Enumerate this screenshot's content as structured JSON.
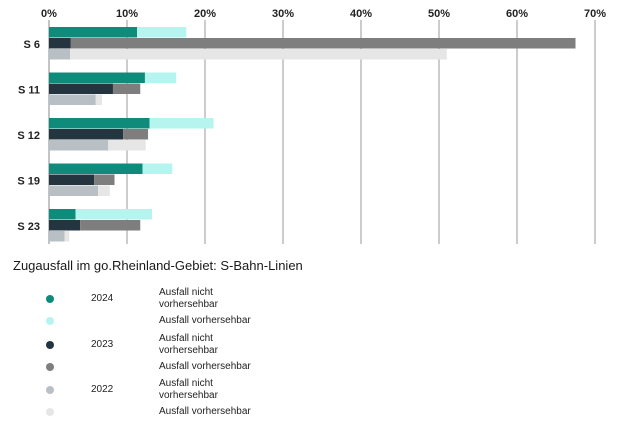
{
  "chart_data": {
    "type": "bar",
    "orientation": "horizontal",
    "stacked": true,
    "title": "Zugausfall im go.Rheinland-Gebiet: S-Bahn-Linien",
    "categories": [
      "S 6",
      "S 11",
      "S 12",
      "S 19",
      "S 23"
    ],
    "x_ticks": [
      "0%",
      "10%",
      "20%",
      "30%",
      "40%",
      "50%",
      "60%",
      "70%"
    ],
    "xlim": [
      0,
      70
    ],
    "xlabel": "",
    "ylabel": "",
    "grid": true,
    "years": [
      {
        "year": "2024",
        "series": [
          {
            "name": "Ausfall nicht vorhersehbar",
            "color": "#0e8b7a",
            "values": [
              11.3,
              12.3,
              12.9,
              12.0,
              3.4
            ]
          },
          {
            "name": "Ausfall vorhersehbar",
            "color": "#b6f5ef",
            "values": [
              6.3,
              4.0,
              8.2,
              3.8,
              9.8
            ]
          }
        ]
      },
      {
        "year": "2023",
        "series": [
          {
            "name": "Ausfall nicht vorhersehbar",
            "color": "#253540",
            "values": [
              2.8,
              8.2,
              9.5,
              5.8,
              4.0
            ]
          },
          {
            "name": "Ausfall vorhersehbar",
            "color": "#7e7e7e",
            "values": [
              64.7,
              3.5,
              3.2,
              2.6,
              7.7
            ]
          }
        ]
      },
      {
        "year": "2022",
        "series": [
          {
            "name": "Ausfall nicht vorhersehbar",
            "color": "#b9c0c5",
            "values": [
              2.7,
              6.0,
              7.6,
              6.3,
              2.0
            ]
          },
          {
            "name": "Ausfall vorhersehbar",
            "color": "#e6e6e6",
            "values": [
              48.3,
              0.8,
              4.8,
              1.5,
              0.6
            ]
          }
        ]
      }
    ]
  }
}
